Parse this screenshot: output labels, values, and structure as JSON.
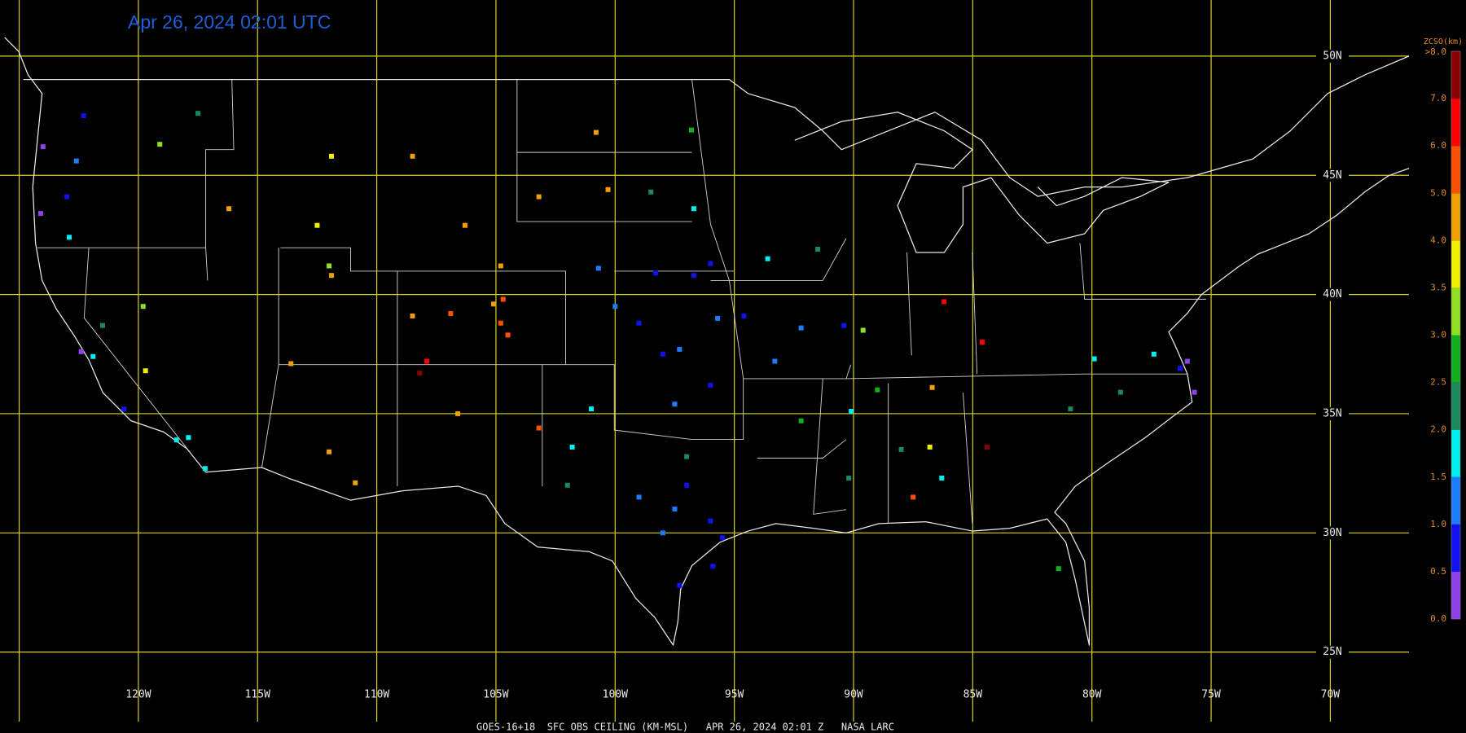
{
  "header": {
    "title": "Apr 26, 2024 02:01 UTC"
  },
  "footer": "GOES-16+18  SFC OBS CEILING (KM-MSL)   APR 26, 2024 02:01 Z   NASA LARC",
  "map": {
    "lon_lines": [
      {
        "value": -125,
        "label": ""
      },
      {
        "value": -120,
        "label": "120W"
      },
      {
        "value": -115,
        "label": "115W"
      },
      {
        "value": -110,
        "label": "110W"
      },
      {
        "value": -105,
        "label": "105W"
      },
      {
        "value": -100,
        "label": "100W"
      },
      {
        "value": -95,
        "label": "95W"
      },
      {
        "value": -90,
        "label": "90W"
      },
      {
        "value": -85,
        "label": "85W"
      },
      {
        "value": -80,
        "label": "80W"
      },
      {
        "value": -75,
        "label": "75W"
      },
      {
        "value": -70,
        "label": "70W"
      }
    ],
    "lat_lines": [
      {
        "value": 50,
        "label": "50N"
      },
      {
        "value": 45,
        "label": "45N"
      },
      {
        "value": 40,
        "label": "40N"
      },
      {
        "value": 35,
        "label": "35N"
      },
      {
        "value": 30,
        "label": "30N"
      },
      {
        "value": 25,
        "label": "25N"
      }
    ],
    "stations": [
      {
        "lon": -97,
        "lat": 32,
        "value": 0.8
      },
      {
        "lon": -97.5,
        "lat": 31,
        "value": 1.0
      },
      {
        "lon": -96,
        "lat": 30.5,
        "value": 0.9
      },
      {
        "lon": -98,
        "lat": 30,
        "value": 1.2
      },
      {
        "lon": -95.5,
        "lat": 29.8,
        "value": 0.7
      },
      {
        "lon": -97.3,
        "lat": 27.8,
        "value": 0.6
      },
      {
        "lon": -99,
        "lat": 31.5,
        "value": 1.3
      },
      {
        "lon": -97,
        "lat": 33.2,
        "value": 2.2
      },
      {
        "lon": -101,
        "lat": 35.2,
        "value": 1.6
      },
      {
        "lon": -101.8,
        "lat": 33.6,
        "value": 1.7
      },
      {
        "lon": -102,
        "lat": 32,
        "value": 2.3
      },
      {
        "lon": -97.5,
        "lat": 35.4,
        "value": 1.1
      },
      {
        "lon": -96,
        "lat": 36.2,
        "value": 0.9
      },
      {
        "lon": -98,
        "lat": 37.5,
        "value": 0.8
      },
      {
        "lon": -97.3,
        "lat": 37.7,
        "value": 1.2
      },
      {
        "lon": -95.7,
        "lat": 39,
        "value": 1.0
      },
      {
        "lon": -99,
        "lat": 38.8,
        "value": 0.9
      },
      {
        "lon": -100,
        "lat": 39.5,
        "value": 1.1
      },
      {
        "lon": -96.7,
        "lat": 40.8,
        "value": 0.8
      },
      {
        "lon": -98.3,
        "lat": 40.9,
        "value": 0.9
      },
      {
        "lon": -96,
        "lat": 41.3,
        "value": 0.7
      },
      {
        "lon": -94.6,
        "lat": 39.1,
        "value": 0.6
      },
      {
        "lon": -100.7,
        "lat": 41.1,
        "value": 1.4
      },
      {
        "lon": -98.5,
        "lat": 44.3,
        "value": 2.3
      },
      {
        "lon": -100.3,
        "lat": 44.4,
        "value": 4.2
      },
      {
        "lon": -96.7,
        "lat": 43.6,
        "value": 1.5
      },
      {
        "lon": -96.8,
        "lat": 46.9,
        "value": 2.7
      },
      {
        "lon": -100.8,
        "lat": 46.8,
        "value": 4.5
      },
      {
        "lon": -103.2,
        "lat": 44.1,
        "value": 4.3
      },
      {
        "lon": -93.6,
        "lat": 41.5,
        "value": 1.8
      },
      {
        "lon": -92.2,
        "lat": 38.6,
        "value": 1.2
      },
      {
        "lon": -90.4,
        "lat": 38.7,
        "value": 0.9
      },
      {
        "lon": -93.3,
        "lat": 37.2,
        "value": 1.3
      },
      {
        "lon": -91.5,
        "lat": 41.9,
        "value": 2.3
      },
      {
        "lon": -104.7,
        "lat": 39.8,
        "value": 5.2
      },
      {
        "lon": -104.8,
        "lat": 38.8,
        "value": 5.5
      },
      {
        "lon": -105.1,
        "lat": 39.6,
        "value": 4.6
      },
      {
        "lon": -106.9,
        "lat": 39.2,
        "value": 5.3
      },
      {
        "lon": -108.5,
        "lat": 39.1,
        "value": 4.4
      },
      {
        "lon": -104.5,
        "lat": 38.3,
        "value": 5.8
      },
      {
        "lon": -107.9,
        "lat": 37.2,
        "value": 6.4
      },
      {
        "lon": -111.9,
        "lat": 40.8,
        "value": 4.2
      },
      {
        "lon": -112,
        "lat": 41.2,
        "value": 3.2
      },
      {
        "lon": -113.6,
        "lat": 37.1,
        "value": 4.8
      },
      {
        "lon": -116.2,
        "lat": 43.6,
        "value": 4.0
      },
      {
        "lon": -112.5,
        "lat": 42.9,
        "value": 3.6
      },
      {
        "lon": -111.9,
        "lat": 45.8,
        "value": 3.8
      },
      {
        "lon": -108.5,
        "lat": 45.8,
        "value": 4.7
      },
      {
        "lon": -106.3,
        "lat": 42.9,
        "value": 4.6
      },
      {
        "lon": -104.8,
        "lat": 41.2,
        "value": 4.1
      },
      {
        "lon": -106.6,
        "lat": 35,
        "value": 4.9
      },
      {
        "lon": -112,
        "lat": 33.4,
        "value": 4.4
      },
      {
        "lon": -110.9,
        "lat": 32.1,
        "value": 4.6
      },
      {
        "lon": -108.2,
        "lat": 36.7,
        "value": 7.2
      },
      {
        "lon": -103.2,
        "lat": 34.4,
        "value": 5.8
      },
      {
        "lon": -122.3,
        "lat": 47.5,
        "value": 0.6
      },
      {
        "lon": -122.6,
        "lat": 45.6,
        "value": 1.2
      },
      {
        "lon": -123,
        "lat": 44.1,
        "value": 0.9
      },
      {
        "lon": -124.1,
        "lat": 43.4,
        "value": 0.4
      },
      {
        "lon": -122.9,
        "lat": 42.4,
        "value": 1.8
      },
      {
        "lon": -117.5,
        "lat": 47.6,
        "value": 2.1
      },
      {
        "lon": -119.1,
        "lat": 46.3,
        "value": 3.2
      },
      {
        "lon": -124,
        "lat": 46.2,
        "value": 0.3
      },
      {
        "lon": -122.4,
        "lat": 37.6,
        "value": 0.4
      },
      {
        "lon": -121.9,
        "lat": 37.4,
        "value": 1.6
      },
      {
        "lon": -121.5,
        "lat": 38.7,
        "value": 2.2
      },
      {
        "lon": -119.7,
        "lat": 36.8,
        "value": 3.6
      },
      {
        "lon": -118.4,
        "lat": 33.9,
        "value": 1.6
      },
      {
        "lon": -117.2,
        "lat": 32.7,
        "value": 1.8
      },
      {
        "lon": -117.9,
        "lat": 34,
        "value": 1.9
      },
      {
        "lon": -119.8,
        "lat": 39.5,
        "value": 3.3
      },
      {
        "lon": -120.6,
        "lat": 35.2,
        "value": 0.9
      },
      {
        "lon": -90.1,
        "lat": 35.1,
        "value": 1.7
      },
      {
        "lon": -89,
        "lat": 36,
        "value": 2.8
      },
      {
        "lon": -86.8,
        "lat": 33.6,
        "value": 3.6
      },
      {
        "lon": -86.3,
        "lat": 32.3,
        "value": 1.9
      },
      {
        "lon": -88,
        "lat": 33.5,
        "value": 2.4
      },
      {
        "lon": -87.5,
        "lat": 31.5,
        "value": 5.4
      },
      {
        "lon": -90.2,
        "lat": 32.3,
        "value": 2.2
      },
      {
        "lon": -92.2,
        "lat": 34.7,
        "value": 2.5
      },
      {
        "lon": -89.6,
        "lat": 38.5,
        "value": 3.1
      },
      {
        "lon": -86.7,
        "lat": 36.1,
        "value": 4.1
      },
      {
        "lon": -84.4,
        "lat": 33.6,
        "value": 7.4
      },
      {
        "lon": -77.4,
        "lat": 37.5,
        "value": 1.7
      },
      {
        "lon": -76.3,
        "lat": 36.9,
        "value": 0.6
      },
      {
        "lon": -75.7,
        "lat": 35.9,
        "value": 0.3
      },
      {
        "lon": -78.8,
        "lat": 35.9,
        "value": 2.4
      },
      {
        "lon": -80.9,
        "lat": 35.2,
        "value": 2.3
      },
      {
        "lon": -79.9,
        "lat": 37.3,
        "value": 1.8
      },
      {
        "lon": -76,
        "lat": 37.2,
        "value": 0.4
      },
      {
        "lon": -81.4,
        "lat": 28.5,
        "value": 2.6
      },
      {
        "lon": -86.2,
        "lat": 39.7,
        "value": 6.6
      },
      {
        "lon": -84.6,
        "lat": 38,
        "value": 6.4
      },
      {
        "lon": -95.9,
        "lat": 28.6,
        "value": 0.5
      }
    ]
  },
  "colorbar": {
    "title": "ZCSO(km)",
    "ticks": [
      {
        "value": 0,
        "label": "0.0"
      },
      {
        "value": 0.5,
        "label": "0.5"
      },
      {
        "value": 1,
        "label": "1.0"
      },
      {
        "value": 1.5,
        "label": "1.5"
      },
      {
        "value": 2,
        "label": "2.0"
      },
      {
        "value": 2.5,
        "label": "2.5"
      },
      {
        "value": 3,
        "label": "3.0"
      },
      {
        "value": 3.5,
        "label": "3.5"
      },
      {
        "value": 4,
        "label": "4.0"
      },
      {
        "value": 5,
        "label": "5.0"
      },
      {
        "value": 6,
        "label": "6.0"
      },
      {
        "value": 7,
        "label": "7.0"
      },
      {
        "value": 8,
        "label": ">8.0"
      }
    ],
    "colors": [
      "#9040e8",
      "#1010f0",
      "#1e7cff",
      "#00f0f0",
      "#1a8a5a",
      "#10b020",
      "#90e020",
      "#f0f000",
      "#f0a000",
      "#ff5000",
      "#ff0000",
      "#8a0000"
    ]
  }
}
